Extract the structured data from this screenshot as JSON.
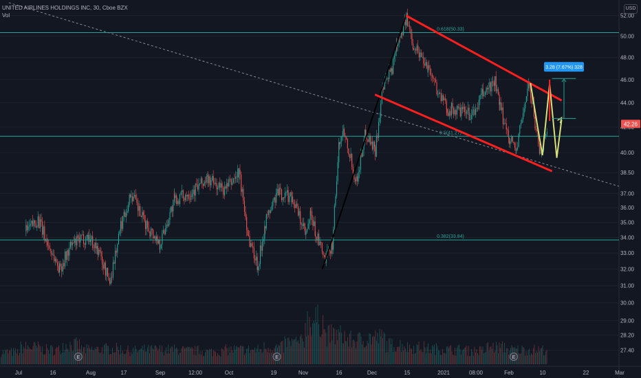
{
  "header": {
    "title": "UNITED AIRLINES HOLDINGS INC, 30, Cboe BZX",
    "volume_label": "Vol",
    "currency": "USD"
  },
  "colors": {
    "background": "#131722",
    "up": "#26a69a",
    "down": "#ef5350",
    "channel": "#ff1f1f",
    "trend": "#000000",
    "fib": "#26a69a",
    "price_tag": "#ef5350",
    "measure": "#2196f3",
    "projection": "#d7e07b"
  },
  "chart_data": {
    "type": "candlestick",
    "symbol": "UNITED AIRLINES HOLDINGS INC",
    "interval": "30",
    "exchange": "Cboe BZX",
    "ylim": [
      26.6,
      52.6
    ],
    "y_scale": "log",
    "y_ticks": [
      27.4,
      28.2,
      29.0,
      30.0,
      31.0,
      32.0,
      33.0,
      34.0,
      35.0,
      36.0,
      37.0,
      38.5,
      40.0,
      42.0,
      44.0,
      46.0,
      48.0,
      50.0,
      52.0
    ],
    "x_ticks": [
      "Jul",
      "16",
      "Aug",
      "17",
      "Sep",
      "12:00",
      "Oct",
      "19",
      "Nov",
      "16",
      "Dec",
      "15",
      "2021",
      "08:00",
      "Feb",
      "10",
      "22",
      "Mar"
    ],
    "last_price": "42.26",
    "price_path": [
      [
        "2020-07-01",
        34.4
      ],
      [
        "2020-07-06",
        35.2
      ],
      [
        "2020-07-10",
        33.6
      ],
      [
        "2020-07-15",
        32.0
      ],
      [
        "2020-07-20",
        33.5
      ],
      [
        "2020-07-27",
        34.1
      ],
      [
        "2020-07-31",
        33.2
      ],
      [
        "2020-08-05",
        31.2
      ],
      [
        "2020-08-10",
        35.0
      ],
      [
        "2020-08-14",
        37.0
      ],
      [
        "2020-08-19",
        35.1
      ],
      [
        "2020-08-26",
        33.6
      ],
      [
        "2020-09-01",
        36.5
      ],
      [
        "2020-09-08",
        37.1
      ],
      [
        "2020-09-15",
        38.0
      ],
      [
        "2020-09-22",
        37.2
      ],
      [
        "2020-09-28",
        38.5
      ],
      [
        "2020-10-02",
        34.0
      ],
      [
        "2020-10-06",
        32.2
      ],
      [
        "2020-10-09",
        35.0
      ],
      [
        "2020-10-14",
        37.0
      ],
      [
        "2020-10-20",
        36.8
      ],
      [
        "2020-10-26",
        34.1
      ],
      [
        "2020-10-28",
        35.5
      ],
      [
        "2020-10-30",
        34.3
      ],
      [
        "2020-11-03",
        32.5
      ],
      [
        "2020-11-06",
        33.6
      ],
      [
        "2020-11-09",
        40.9
      ],
      [
        "2020-11-11",
        41.8
      ],
      [
        "2020-11-16",
        37.8
      ],
      [
        "2020-11-20",
        41.6
      ],
      [
        "2020-11-24",
        40.2
      ],
      [
        "2020-11-27",
        45.0
      ],
      [
        "2020-12-01",
        47.0
      ],
      [
        "2020-12-03",
        49.5
      ],
      [
        "2020-12-07",
        51.6
      ],
      [
        "2020-12-10",
        49.2
      ],
      [
        "2020-12-16",
        47.2
      ],
      [
        "2020-12-21",
        44.6
      ],
      [
        "2020-12-24",
        43.5
      ],
      [
        "2021-01-04",
        43.0
      ],
      [
        "2021-01-08",
        44.8
      ],
      [
        "2021-01-13",
        45.8
      ],
      [
        "2021-01-15",
        43.6
      ],
      [
        "2021-01-19",
        41.2
      ],
      [
        "2021-01-22",
        40.2
      ],
      [
        "2021-01-27",
        45.6
      ],
      [
        "2021-02-01",
        39.8
      ],
      [
        "2021-02-04",
        42.26
      ]
    ],
    "volume": {
      "max": 1,
      "rel": [
        0.25,
        0.35,
        0.3,
        0.4,
        0.3,
        0.32,
        0.28,
        0.3,
        0.3,
        0.28,
        0.26,
        0.3,
        0.3,
        0.35,
        0.45,
        0.9,
        0.6,
        0.5,
        0.55,
        0.4,
        0.35,
        0.32,
        0.3,
        0.28,
        0.35,
        0.3,
        0.3
      ]
    },
    "horizontal_levels": [
      {
        "label": "0.618(50.33)",
        "value": 50.33
      },
      {
        "label": "0.5(41.27)",
        "value": 41.27
      },
      {
        "label": "0.382(33.84)",
        "value": 33.84
      }
    ],
    "trendlines": [
      {
        "role": "dashed-long",
        "from": [
          "2020-06-24",
          53.3
        ],
        "to": [
          "2021-03-06",
          37.5
        ]
      },
      {
        "role": "impulse",
        "from": [
          "2020-11-02",
          32.0
        ],
        "to": [
          "2020-12-07",
          52.0
        ]
      },
      {
        "role": "channel-upper",
        "from": [
          "2020-12-07",
          52.0
        ],
        "to": [
          "2021-02-10",
          44.2
        ]
      },
      {
        "role": "channel-lower",
        "from": [
          "2020-11-24",
          44.7
        ],
        "to": [
          "2021-02-06",
          38.6
        ]
      }
    ],
    "projection_path": [
      [
        "2021-01-28",
        45.7
      ],
      [
        "2021-01-31",
        42.0
      ],
      [
        "2021-02-02",
        39.8
      ],
      [
        "2021-02-05",
        45.6
      ],
      [
        "2021-02-08",
        39.6
      ],
      [
        "2021-02-10",
        42.6
      ]
    ],
    "measure": {
      "label": "3.28 (7.67%) 328",
      "low": 42.7,
      "high": 46.1
    },
    "event_markers": [
      {
        "label": "E",
        "date": "2020-07-23"
      },
      {
        "label": "E",
        "date": "2020-10-14"
      },
      {
        "label": "E",
        "date": "2021-01-21"
      }
    ]
  }
}
